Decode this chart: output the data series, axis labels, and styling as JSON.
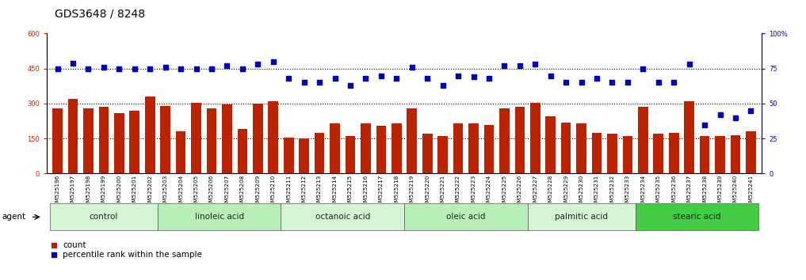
{
  "title": "GDS3648 / 8248",
  "samples": [
    "GSM525196",
    "GSM525197",
    "GSM525198",
    "GSM525199",
    "GSM525200",
    "GSM525201",
    "GSM525202",
    "GSM525203",
    "GSM525204",
    "GSM525205",
    "GSM525206",
    "GSM525207",
    "GSM525208",
    "GSM525209",
    "GSM525210",
    "GSM525211",
    "GSM525212",
    "GSM525213",
    "GSM525214",
    "GSM525215",
    "GSM525216",
    "GSM525217",
    "GSM525218",
    "GSM525219",
    "GSM525220",
    "GSM525221",
    "GSM525222",
    "GSM525223",
    "GSM525224",
    "GSM525225",
    "GSM525226",
    "GSM525227",
    "GSM525228",
    "GSM525229",
    "GSM525230",
    "GSM525231",
    "GSM525232",
    "GSM525233",
    "GSM525234",
    "GSM525235",
    "GSM525236",
    "GSM525237",
    "GSM525238",
    "GSM525239",
    "GSM525240",
    "GSM525241"
  ],
  "counts": [
    280,
    320,
    280,
    285,
    258,
    270,
    330,
    290,
    180,
    305,
    280,
    295,
    190,
    300,
    310,
    155,
    150,
    175,
    215,
    160,
    215,
    205,
    215,
    280,
    170,
    160,
    215,
    215,
    210,
    280,
    285,
    305,
    245,
    220,
    215,
    175,
    170,
    160,
    285,
    170,
    175,
    310,
    160,
    160,
    165,
    180
  ],
  "percentiles": [
    75,
    79,
    75,
    76,
    75,
    75,
    75,
    76,
    75,
    75,
    75,
    77,
    75,
    78,
    80,
    68,
    65,
    65,
    68,
    63,
    68,
    70,
    68,
    76,
    68,
    63,
    70,
    69,
    68,
    77,
    77,
    78,
    70,
    65,
    65,
    68,
    65,
    65,
    75,
    65,
    65,
    78,
    35,
    42,
    40,
    45
  ],
  "groups": [
    {
      "label": "control",
      "start": 0,
      "end": 6
    },
    {
      "label": "linoleic acid",
      "start": 7,
      "end": 14
    },
    {
      "label": "octanoic acid",
      "start": 15,
      "end": 22
    },
    {
      "label": "oleic acid",
      "start": 23,
      "end": 30
    },
    {
      "label": "palmitic acid",
      "start": 31,
      "end": 37
    },
    {
      "label": "stearic acid",
      "start": 38,
      "end": 45
    }
  ],
  "group_colors": [
    "#d4f5d4",
    "#b8eeb8",
    "#d4f5d4",
    "#b8eeb8",
    "#d4f5d4",
    "#44cc44"
  ],
  "bar_color": "#bb2200",
  "dot_color": "#0000bb",
  "ylim_left": [
    0,
    600
  ],
  "ylim_right": [
    0,
    100
  ],
  "yticks_left": [
    0,
    150,
    300,
    450,
    600
  ],
  "yticks_right": [
    0,
    25,
    50,
    75,
    100
  ],
  "ytick_labels_right": [
    "0",
    "25",
    "50",
    "75",
    "100%"
  ],
  "agent_label": "agent",
  "legend_count": "count",
  "legend_pct": "percentile rank within the sample",
  "title_fontsize": 10,
  "tick_fontsize": 6,
  "group_fontsize": 7.5,
  "left_tick_color": "#cc2200",
  "right_tick_color": "#0000bb",
  "bg_color": "#ffffff"
}
